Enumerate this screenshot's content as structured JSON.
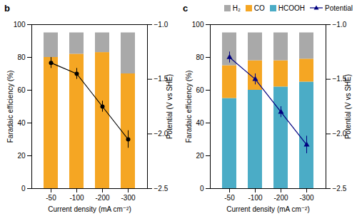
{
  "chart_data": [
    {
      "type": "bar",
      "title": "b",
      "stacked": true,
      "categories": [
        "-50",
        "-100",
        "-200",
        "-300"
      ],
      "x_label": "Current density (mA cm⁻²)",
      "y_label": "Faradaic efficiency (%)",
      "y2_label": "Potential (V vs SHE)",
      "ylim": [
        0,
        100
      ],
      "yticks": [
        0,
        20,
        40,
        60,
        80,
        100
      ],
      "y2lim": [
        -2.5,
        -1.0
      ],
      "y2ticks": [
        -2.5,
        {
          "value": -2,
          "label": "−2.0"
        },
        -1.5,
        {
          "value": -1,
          "label": "−1.0"
        }
      ],
      "grid": false,
      "series": [
        {
          "name": "CO",
          "type": "bar",
          "color": "#F5A623",
          "values": [
            80,
            82,
            83,
            70
          ]
        },
        {
          "name": "H₂",
          "type": "bar",
          "color": "#A9A9A9",
          "values": [
            15,
            13,
            12,
            25
          ]
        },
        {
          "type": "line",
          "axis": "y2",
          "color": "black",
          "marker": "circle",
          "line_style": "solid",
          "values": [
            -1.35,
            -1.45,
            -1.75,
            -2.05
          ],
          "errors": [
            0.05,
            0.05,
            0.05,
            0.08
          ]
        }
      ]
    },
    {
      "type": "bar",
      "title": "c",
      "stacked": true,
      "categories": [
        "-50",
        "-100",
        "-200",
        "-300"
      ],
      "x_label": "Current density (mA cm⁻²)",
      "y_label": "Faradaic efficiency (%)",
      "y2_label": "Potential (V vs SHE)",
      "ylim": [
        0,
        100
      ],
      "yticks": [
        0,
        20,
        40,
        60,
        80,
        100
      ],
      "y2lim": [
        -2.5,
        -1.0
      ],
      "y2ticks": [
        -2.5,
        {
          "value": -2,
          "label": "−2.0"
        },
        -1.5,
        {
          "value": -1,
          "label": "−1.0"
        }
      ],
      "grid": false,
      "legend": "upper right",
      "series": [
        {
          "name": "HCOOH",
          "type": "bar",
          "color": "#4BACC6",
          "values": [
            55,
            60,
            62,
            65
          ]
        },
        {
          "name": "CO",
          "type": "bar",
          "color": "#F5A623",
          "values": [
            20,
            18,
            16,
            14
          ]
        },
        {
          "name": "H₂",
          "type": "bar",
          "color": "#A9A9A9",
          "values": [
            20,
            17,
            17,
            16
          ]
        },
        {
          "name": "Potential",
          "type": "line",
          "axis": "y2",
          "color": "navy",
          "marker": "triangle",
          "line_style": "solid",
          "values": [
            -1.3,
            -1.5,
            -1.8,
            -2.1
          ],
          "errors": [
            0.05,
            0.05,
            0.05,
            0.08
          ]
        }
      ]
    }
  ]
}
